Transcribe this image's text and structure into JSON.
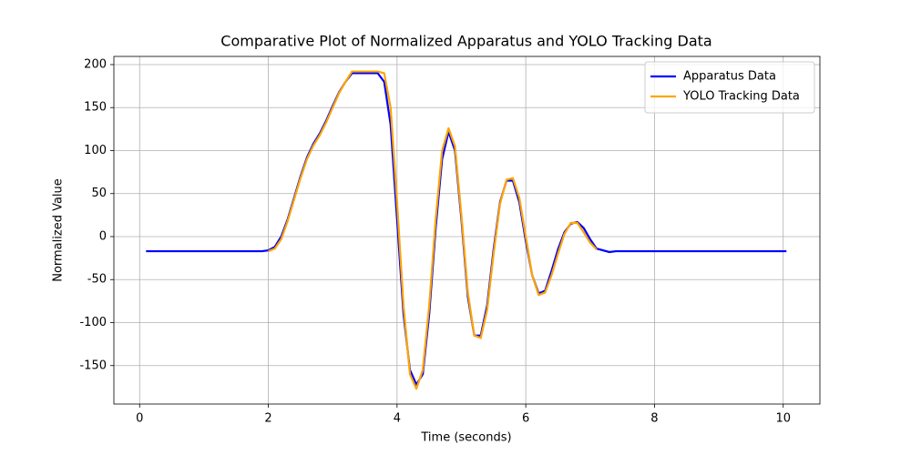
{
  "chart_data": {
    "type": "line",
    "title": "Comparative Plot of Normalized Apparatus and YOLO Tracking Data",
    "x_label": "Time (seconds)",
    "y_label": "Normalized Value",
    "xlim": [
      -0.4,
      10.57
    ],
    "ylim": [
      -194.7,
      209.5
    ],
    "xticks": [
      0,
      2,
      4,
      6,
      8,
      10
    ],
    "yticks": [
      -150,
      -100,
      -50,
      0,
      50,
      100,
      150,
      200
    ],
    "grid": true,
    "legend": "upper right",
    "series": [
      {
        "name": "Apparatus Data",
        "color": "#0000ff",
        "x": [
          0.1,
          1,
          1.9,
          2.0,
          2.1,
          2.2,
          2.3,
          2.4,
          2.5,
          2.6,
          2.7,
          2.8,
          2.9,
          3.0,
          3.1,
          3.2,
          3.3,
          3.5,
          3.7,
          3.8,
          3.9,
          4.0,
          4.1,
          4.2,
          4.3,
          4.4,
          4.5,
          4.6,
          4.7,
          4.8,
          4.9,
          5.0,
          5.1,
          5.2,
          5.3,
          5.4,
          5.5,
          5.6,
          5.7,
          5.8,
          5.9,
          6.0,
          6.1,
          6.2,
          6.3,
          6.4,
          6.5,
          6.6,
          6.7,
          6.8,
          6.9,
          7.0,
          7.1,
          7.3,
          7.4,
          8,
          9,
          10.05
        ],
        "values": [
          -17,
          -17,
          -17,
          -16,
          -12,
          0,
          20,
          45,
          70,
          92,
          108,
          120,
          135,
          152,
          168,
          180,
          190,
          190,
          190,
          180,
          130,
          20,
          -90,
          -155,
          -172,
          -160,
          -90,
          10,
          90,
          122,
          100,
          20,
          -70,
          -115,
          -115,
          -80,
          -15,
          40,
          65,
          65,
          40,
          -5,
          -45,
          -66,
          -63,
          -40,
          -15,
          5,
          15,
          17,
          10,
          -3,
          -14,
          -18,
          -17,
          -17,
          -17,
          -17
        ]
      },
      {
        "name": "YOLO Tracking Data",
        "color": "#ffa500",
        "x": [
          2.0,
          2.1,
          2.2,
          2.3,
          2.4,
          2.5,
          2.6,
          2.7,
          2.8,
          2.9,
          3.0,
          3.1,
          3.2,
          3.3,
          3.5,
          3.7,
          3.8,
          3.9,
          4.0,
          4.1,
          4.2,
          4.3,
          4.4,
          4.5,
          4.6,
          4.7,
          4.8,
          4.9,
          5.0,
          5.1,
          5.2,
          5.3,
          5.4,
          5.5,
          5.6,
          5.7,
          5.8,
          5.9,
          6.0,
          6.1,
          6.2,
          6.3,
          6.4,
          6.5,
          6.6,
          6.7,
          6.8,
          6.9,
          7.0,
          7.1
        ],
        "values": [
          -17,
          -14,
          -3,
          18,
          43,
          68,
          90,
          106,
          118,
          133,
          150,
          167,
          180,
          192,
          192,
          192,
          190,
          150,
          40,
          -80,
          -160,
          -177,
          -155,
          -80,
          20,
          100,
          126,
          105,
          25,
          -65,
          -115,
          -118,
          -85,
          -20,
          38,
          66,
          68,
          45,
          0,
          -45,
          -68,
          -65,
          -45,
          -20,
          3,
          16,
          16,
          5,
          -7,
          -15
        ]
      }
    ]
  }
}
